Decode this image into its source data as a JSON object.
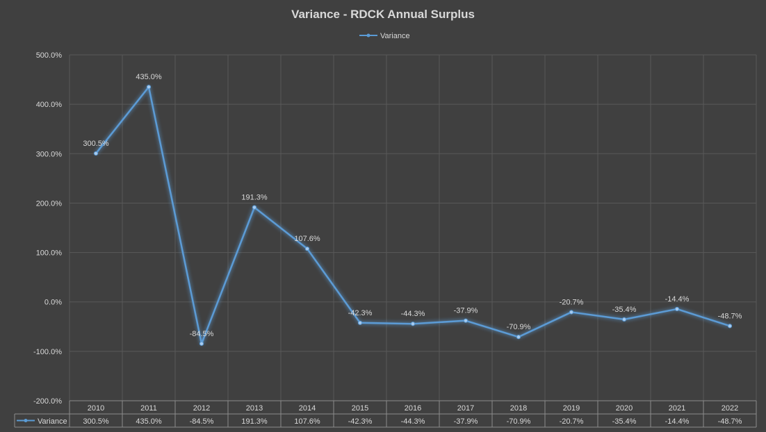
{
  "chart_data": {
    "type": "line",
    "title": "Variance - RDCK Annual Surplus",
    "categories": [
      "2010",
      "2011",
      "2012",
      "2013",
      "2014",
      "2015",
      "2016",
      "2017",
      "2018",
      "2019",
      "2020",
      "2021",
      "2022"
    ],
    "series": [
      {
        "name": "Variance",
        "values": [
          300.5,
          435.0,
          -84.5,
          191.3,
          107.6,
          -42.3,
          -44.3,
          -37.9,
          -70.9,
          -20.7,
          -35.4,
          -14.4,
          -48.7
        ],
        "labels": [
          "300.5%",
          "435.0%",
          "-84.5%",
          "191.3%",
          "107.6%",
          "-42.3%",
          "-44.3%",
          "-37.9%",
          "-70.9%",
          "-20.7%",
          "-35.4%",
          "-14.4%",
          "-48.7%"
        ],
        "color": "#5b9bd5"
      }
    ],
    "ylim": [
      -200,
      500
    ],
    "yticks": [
      500,
      400,
      300,
      200,
      100,
      0,
      -100,
      -200
    ],
    "ytick_labels": [
      "500.0%",
      "400.0%",
      "300.0%",
      "200.0%",
      "100.0%",
      "0.0%",
      "-100.0%",
      "-200.0%"
    ],
    "legend_position": "top",
    "grid": true,
    "data_table": true
  },
  "colors": {
    "background": "#404040",
    "gridline": "#595959",
    "text": "#d9d9d9",
    "series": "#5b9bd5"
  }
}
